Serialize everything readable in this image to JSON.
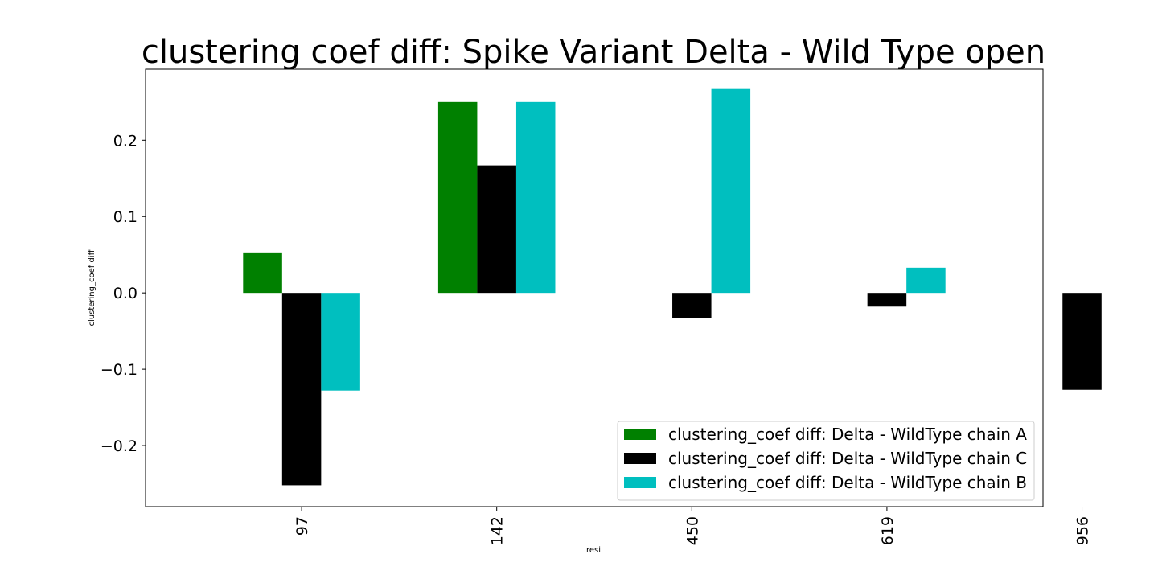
{
  "chart_data": {
    "type": "bar",
    "title": "clustering coef diff: Spike Variant Delta - Wild Type open",
    "xlabel": "resi",
    "ylabel": "clustering_coef diff",
    "categories": [
      "97",
      "142",
      "450",
      "619",
      "956"
    ],
    "ylim": [
      -0.28,
      0.293
    ],
    "yticks": [
      -0.2,
      -0.1,
      0.0,
      0.1,
      0.2
    ],
    "ytick_labels": [
      "−0.2",
      "−0.1",
      "0.0",
      "0.1",
      "0.2"
    ],
    "grid": false,
    "legend_position": "lower-right",
    "series": [
      {
        "name": "clustering_coef diff: Delta - WildType chain A",
        "color": "#008000",
        "values": [
          0.053,
          0.25,
          0.0,
          0.0,
          0.0
        ]
      },
      {
        "name": "clustering_coef diff: Delta - WildType chain C",
        "color": "#000000",
        "values": [
          -0.252,
          0.167,
          -0.033,
          -0.018,
          -0.127
        ]
      },
      {
        "name": "clustering_coef diff: Delta - WildType chain B",
        "color": "#00bfbf",
        "values": [
          -0.128,
          0.25,
          0.267,
          0.033,
          0.0
        ]
      }
    ]
  }
}
